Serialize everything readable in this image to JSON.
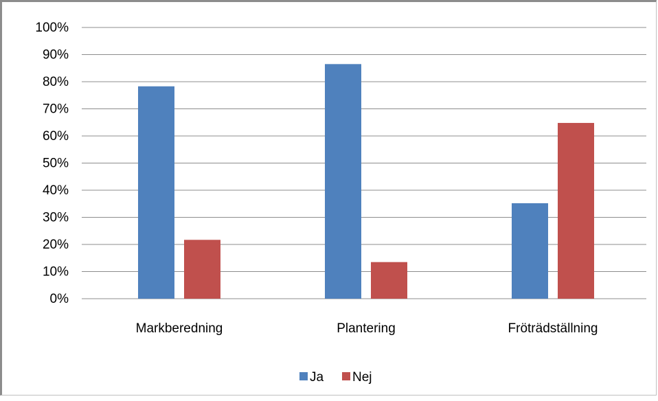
{
  "chart_data": {
    "type": "bar",
    "categories": [
      "Markberedning",
      "Plantering",
      "Fröträdställning"
    ],
    "series": [
      {
        "name": "Ja",
        "values": [
          78.3,
          86.5,
          35.2
        ],
        "color": "#4f81bd"
      },
      {
        "name": "Nej",
        "values": [
          21.7,
          13.5,
          64.8
        ],
        "color": "#c0504d"
      }
    ],
    "ylim": [
      0,
      100
    ],
    "yticks": [
      "0%",
      "10%",
      "20%",
      "30%",
      "40%",
      "50%",
      "60%",
      "70%",
      "80%",
      "90%",
      "100%"
    ],
    "grid": true,
    "legend": "bottom",
    "title": "",
    "xlabel": "",
    "ylabel": ""
  }
}
